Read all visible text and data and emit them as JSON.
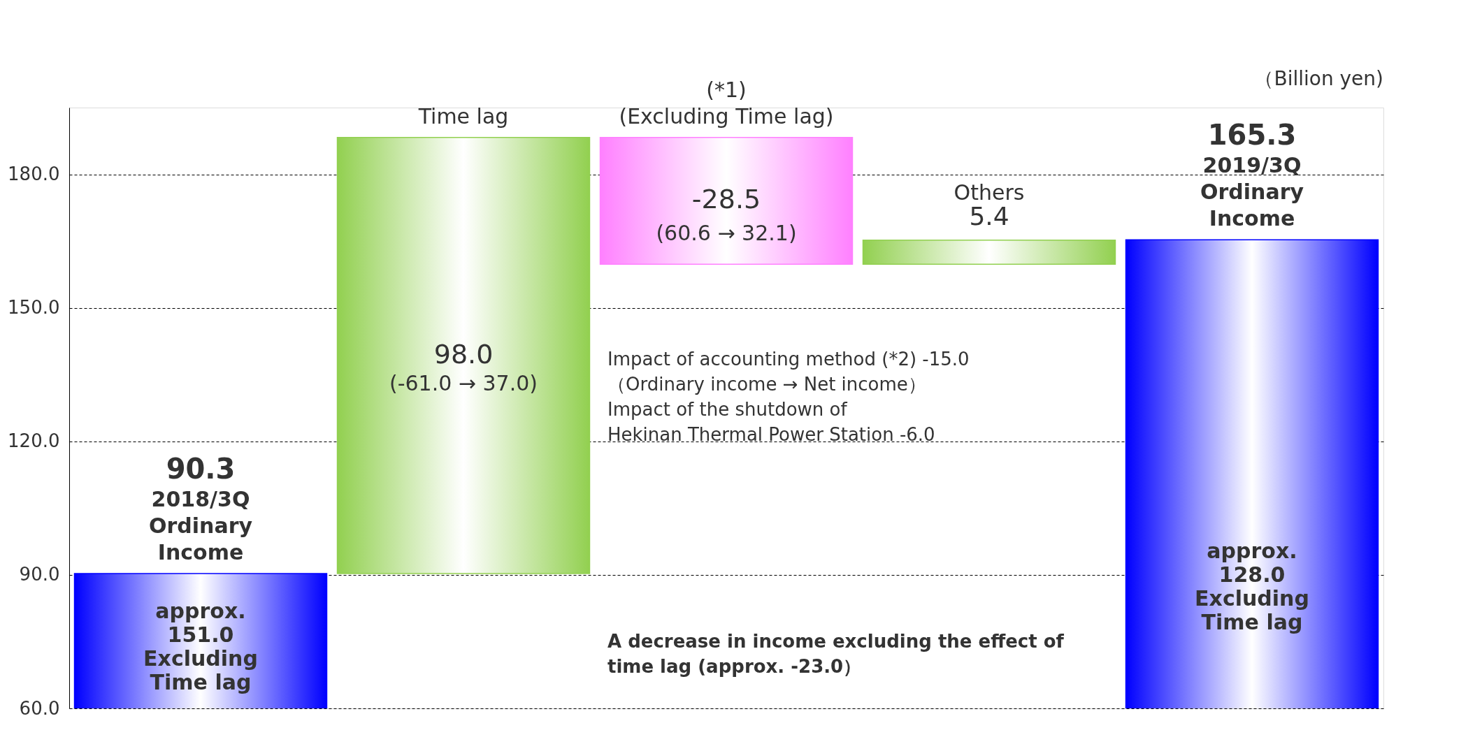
{
  "chart_data": {
    "type": "bar",
    "ylabel": "（Billion yen)",
    "categories": [
      "2018/3Q\nOrdinary\nIncome",
      "Time lag",
      "(*1)\n(Excluding Time lag)",
      "Others",
      "2019/3Q\nOrdinary\nIncome"
    ],
    "values": [
      90.3,
      98.0,
      -28.5,
      5.4,
      165.3
    ],
    "value_labels": [
      "90.3",
      "98.0",
      "-28.5",
      "5.4",
      "165.3"
    ],
    "base": [
      0,
      90.3,
      188.3,
      159.8,
      0
    ],
    "colors": [
      "#0000ff",
      "#92d050",
      "#ff80ff",
      "#92d050",
      "#0000ff"
    ],
    "ylim": [
      60,
      195
    ],
    "yticks": [
      {
        "value": 60,
        "label": "60.0"
      },
      {
        "value": 90,
        "label": "90.0"
      },
      {
        "value": 120,
        "label": "120.0"
      },
      {
        "value": 150,
        "label": "150.0"
      },
      {
        "value": 180,
        "label": "180.0"
      }
    ],
    "grid": "y",
    "tick_labels": "y",
    "annotations": [
      "(-61.0 → 37.0)",
      "(60.6 → 32.1)",
      "approx.\n151.0\nExcluding\nTime lag",
      "approx.\n128.0\nExcluding\nTime lag",
      "Impact of accounting method (*2)   -15.0\n（Ordinary income → Net income）\nImpact of the shutdown of\n    Hekinan Thermal Power Station  -6.0",
      "A decrease in income excluding the effect of\ntime lag (approx. -23.0）"
    ]
  }
}
